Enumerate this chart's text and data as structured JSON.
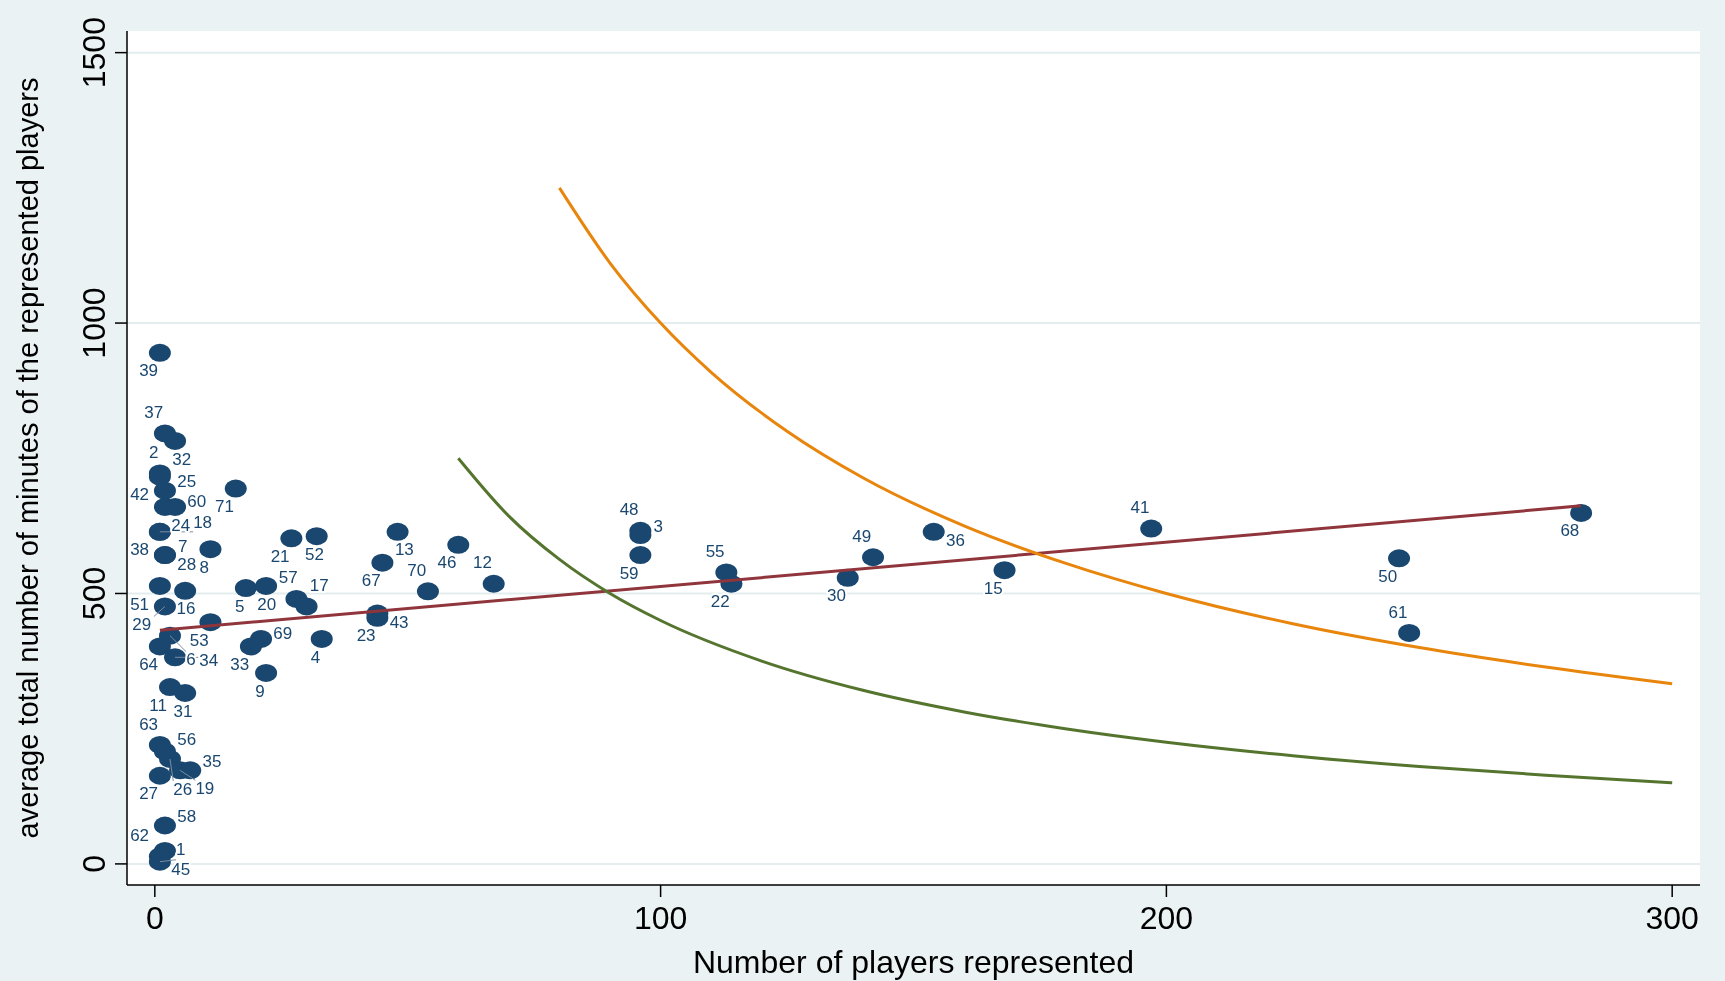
{
  "chart_data": {
    "type": "scatter",
    "xlabel": "Number of players represented",
    "ylabel": "average total number of minutes of the represented players",
    "xlim": [
      -5.5,
      305.5
    ],
    "ylim": [
      -39,
      1540
    ],
    "xticks": [
      0,
      100,
      200,
      300
    ],
    "yticks": [
      0,
      500,
      1000,
      1500
    ],
    "grid": "y",
    "marker": "circle",
    "series": [
      {
        "color": "#1a476f",
        "x": [
          1,
          2,
          4,
          1,
          1,
          2,
          16,
          2,
          4,
          1,
          2,
          1,
          2,
          11,
          27,
          32,
          48,
          60,
          45,
          54,
          67,
          1,
          6,
          18,
          22,
          28,
          30,
          2,
          11,
          3,
          1,
          4,
          21,
          19,
          33,
          44,
          44,
          22,
          3,
          6,
          1,
          2,
          3,
          1,
          5,
          7,
          2,
          2,
          1,
          1,
          96,
          96,
          96,
          113,
          114,
          137,
          142,
          154,
          168,
          197,
          246,
          248,
          282
        ],
        "values": [
          945,
          796,
          782,
          722,
          716,
          690,
          694,
          660,
          660,
          614,
          571,
          614,
          571,
          582,
          602,
          606,
          614,
          590,
          557,
          504,
          518,
          514,
          505,
          510,
          514,
          490,
          476,
          476,
          447,
          422,
          402,
          382,
          416,
          402,
          416,
          463,
          455,
          353,
          327,
          316,
          220,
          208,
          194,
          163,
          173,
          173,
          71,
          24,
          14,
          4,
          616,
          608,
          571,
          539,
          518,
          529,
          567,
          614,
          543,
          620,
          565,
          427,
          649
        ]
      },
      {
        "type": "line",
        "marker": "none",
        "color": "#90353b",
        "x": [
          1,
          282
        ],
        "values": [
          432,
          662
        ]
      },
      {
        "type": "line",
        "marker": "none",
        "color": "#e8850c",
        "x": [
          80,
          90,
          100,
          110,
          125,
          140,
          160,
          180,
          200,
          225,
          250,
          275,
          300
        ],
        "values": [
          1250,
          1111,
          1000,
          909,
          800,
          714,
          625,
          556,
          500,
          444,
          400,
          364,
          333
        ]
      },
      {
        "type": "line",
        "marker": "none",
        "color": "#55752f",
        "x": [
          60,
          70,
          80,
          90,
          100,
          120,
          140,
          160,
          180,
          200,
          225,
          250,
          275,
          300
        ],
        "values": [
          750,
          643,
          563,
          500,
          450,
          375,
          321,
          281,
          250,
          225,
          200,
          180,
          164,
          150
        ]
      }
    ],
    "annotations": [
      {
        "text": "39",
        "x": 1,
        "y": 945
      },
      {
        "text": "37",
        "x": 2,
        "y": 796
      },
      {
        "text": "32",
        "x": 4,
        "y": 782
      },
      {
        "text": "2",
        "x": 1,
        "y": 722
      },
      {
        "text": "42",
        "x": 1,
        "y": 716
      },
      {
        "text": "25",
        "x": 2,
        "y": 690
      },
      {
        "text": "71",
        "x": 16,
        "y": 694
      },
      {
        "text": "24",
        "x": 2,
        "y": 660
      },
      {
        "text": "60",
        "x": 4,
        "y": 660
      },
      {
        "text": "38",
        "x": 1,
        "y": 614
      },
      {
        "text": "7",
        "x": 2,
        "y": 571
      },
      {
        "text": "18",
        "x": 1,
        "y": 614
      },
      {
        "text": "28",
        "x": 2,
        "y": 571
      },
      {
        "text": "8",
        "x": 11,
        "y": 582
      },
      {
        "text": "21",
        "x": 27,
        "y": 602
      },
      {
        "text": "52",
        "x": 32,
        "y": 606
      },
      {
        "text": "13",
        "x": 48,
        "y": 614
      },
      {
        "text": "46",
        "x": 60,
        "y": 590
      },
      {
        "text": "67",
        "x": 45,
        "y": 557
      },
      {
        "text": "70",
        "x": 54,
        "y": 504
      },
      {
        "text": "12",
        "x": 67,
        "y": 518
      },
      {
        "text": "51",
        "x": 1,
        "y": 514
      },
      {
        "text": "16",
        "x": 6,
        "y": 505
      },
      {
        "text": "5",
        "x": 18,
        "y": 510
      },
      {
        "text": "20",
        "x": 22,
        "y": 514
      },
      {
        "text": "57",
        "x": 28,
        "y": 490
      },
      {
        "text": "17",
        "x": 30,
        "y": 476
      },
      {
        "text": "29",
        "x": 2,
        "y": 476
      },
      {
        "text": "53",
        "x": 11,
        "y": 447
      },
      {
        "text": "6",
        "x": 3,
        "y": 422
      },
      {
        "text": "64",
        "x": 1,
        "y": 402
      },
      {
        "text": "34",
        "x": 4,
        "y": 382
      },
      {
        "text": "69",
        "x": 21,
        "y": 416
      },
      {
        "text": "33",
        "x": 19,
        "y": 402
      },
      {
        "text": "4",
        "x": 33,
        "y": 416
      },
      {
        "text": "43",
        "x": 44,
        "y": 463
      },
      {
        "text": "23",
        "x": 44,
        "y": 455
      },
      {
        "text": "9",
        "x": 22,
        "y": 353
      },
      {
        "text": "11",
        "x": 3,
        "y": 327
      },
      {
        "text": "31",
        "x": 6,
        "y": 316
      },
      {
        "text": "63",
        "x": 1,
        "y": 220
      },
      {
        "text": "56",
        "x": 2,
        "y": 208
      },
      {
        "text": "26",
        "x": 3,
        "y": 194
      },
      {
        "text": "27",
        "x": 1,
        "y": 163
      },
      {
        "text": "19",
        "x": 5,
        "y": 173
      },
      {
        "text": "35",
        "x": 7,
        "y": 173
      },
      {
        "text": "58",
        "x": 2,
        "y": 71
      },
      {
        "text": "45",
        "x": 2,
        "y": 24
      },
      {
        "text": "62",
        "x": 1,
        "y": 14
      },
      {
        "text": "1",
        "x": 1,
        "y": 4
      },
      {
        "text": "48",
        "x": 96,
        "y": 616
      },
      {
        "text": "3",
        "x": 96,
        "y": 608
      },
      {
        "text": "59",
        "x": 96,
        "y": 571
      },
      {
        "text": "55",
        "x": 113,
        "y": 539
      },
      {
        "text": "22",
        "x": 114,
        "y": 518
      },
      {
        "text": "30",
        "x": 137,
        "y": 529
      },
      {
        "text": "49",
        "x": 142,
        "y": 567
      },
      {
        "text": "36",
        "x": 154,
        "y": 614
      },
      {
        "text": "15",
        "x": 168,
        "y": 543
      },
      {
        "text": "41",
        "x": 197,
        "y": 620
      },
      {
        "text": "50",
        "x": 246,
        "y": 565
      },
      {
        "text": "61",
        "x": 248,
        "y": 427
      },
      {
        "text": "68",
        "x": 282,
        "y": 649
      }
    ]
  }
}
